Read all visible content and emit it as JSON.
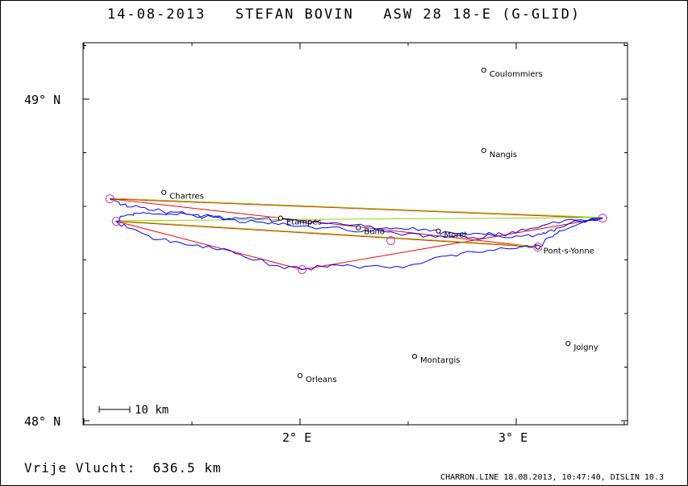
{
  "title": "14-08-2013   STEFAN BOVIN   ASW 28 18-E (G-GLID)",
  "axes": {
    "y_labels": [
      {
        "text": "49° N",
        "lat": 49.0
      },
      {
        "text": "48° N",
        "lat": 48.0
      }
    ],
    "x_labels": [
      {
        "text": "2° E",
        "lon": 2.0
      },
      {
        "text": "3° E",
        "lon": 3.0
      }
    ]
  },
  "places": [
    {
      "name": "Coulommiers",
      "lon": 2.85,
      "lat": 49.09
    },
    {
      "name": "Nangis",
      "lon": 2.85,
      "lat": 48.84
    },
    {
      "name": "Chartres",
      "lon": 1.37,
      "lat": 48.71
    },
    {
      "name": "Etampes",
      "lon": 1.91,
      "lat": 48.63
    },
    {
      "name": "Buno",
      "lon": 2.27,
      "lat": 48.6
    },
    {
      "name": "Moret",
      "lon": 2.64,
      "lat": 48.59
    },
    {
      "name": "Pont-s-Yonne",
      "lon": 3.1,
      "lat": 48.54
    },
    {
      "name": "Joigny",
      "lon": 3.24,
      "lat": 48.24
    },
    {
      "name": "Montargis",
      "lon": 2.53,
      "lat": 48.2
    },
    {
      "name": "Orleans",
      "lon": 2.0,
      "lat": 48.14
    }
  ],
  "scale_bar": {
    "label": "10 km"
  },
  "footer_left": "Vrije Vlucht:  636.5 km",
  "footer_right": "CHARRON.LINE 18.08.2013, 10:47:40, DISLIN 10.3",
  "colors": {
    "track": "#0000ff",
    "task_red": "#ff0000",
    "task_green": "#88e000",
    "turnpoint": "#cc33cc",
    "frame": "#000000"
  },
  "turnpoints": [
    {
      "lon": 1.12,
      "lat": 48.69
    },
    {
      "lon": 1.15,
      "lat": 48.62
    },
    {
      "lon": 2.01,
      "lat": 48.47
    },
    {
      "lon": 2.42,
      "lat": 48.56
    },
    {
      "lon": 3.1,
      "lat": 48.54
    },
    {
      "lon": 3.4,
      "lat": 48.63
    }
  ],
  "task_lines_red": [
    [
      [
        1.12,
        48.69
      ],
      [
        3.4,
        48.63
      ]
    ],
    [
      [
        1.12,
        48.69
      ],
      [
        3.1,
        48.54
      ]
    ],
    [
      [
        1.15,
        48.62
      ],
      [
        2.01,
        48.47
      ]
    ],
    [
      [
        2.01,
        48.47
      ],
      [
        3.4,
        48.63
      ]
    ],
    [
      [
        1.15,
        48.62
      ],
      [
        3.1,
        48.54
      ]
    ]
  ],
  "task_lines_green": [
    [
      [
        1.12,
        48.69
      ],
      [
        3.4,
        48.63
      ]
    ],
    [
      [
        1.15,
        48.62
      ],
      [
        3.4,
        48.63
      ]
    ],
    [
      [
        1.15,
        48.62
      ],
      [
        3.1,
        48.54
      ]
    ]
  ],
  "track": [
    [
      1.12,
      48.69
    ],
    [
      1.16,
      48.68
    ],
    [
      1.22,
      48.665
    ],
    [
      1.3,
      48.655
    ],
    [
      1.4,
      48.65
    ],
    [
      1.5,
      48.64
    ],
    [
      1.6,
      48.632
    ],
    [
      1.7,
      48.625
    ],
    [
      1.8,
      48.618
    ],
    [
      1.9,
      48.61
    ],
    [
      2.0,
      48.605
    ],
    [
      2.1,
      48.6
    ],
    [
      2.2,
      48.596
    ],
    [
      2.3,
      48.592
    ],
    [
      2.4,
      48.587
    ],
    [
      2.5,
      48.582
    ],
    [
      2.6,
      48.577
    ],
    [
      2.7,
      48.573
    ],
    [
      2.8,
      48.57
    ],
    [
      2.9,
      48.575
    ],
    [
      3.0,
      48.585
    ],
    [
      3.1,
      48.6
    ],
    [
      3.2,
      48.615
    ],
    [
      3.3,
      48.625
    ],
    [
      3.4,
      48.63
    ],
    [
      3.3,
      48.62
    ],
    [
      3.2,
      48.6
    ],
    [
      3.15,
      48.59
    ],
    [
      3.1,
      48.58
    ],
    [
      3.0,
      48.575
    ],
    [
      2.9,
      48.578
    ],
    [
      2.8,
      48.582
    ],
    [
      2.7,
      48.585
    ],
    [
      2.6,
      48.59
    ],
    [
      2.5,
      48.595
    ],
    [
      2.4,
      48.6
    ],
    [
      2.3,
      48.605
    ],
    [
      2.2,
      48.61
    ],
    [
      2.1,
      48.614
    ],
    [
      2.0,
      48.618
    ],
    [
      1.9,
      48.622
    ],
    [
      1.8,
      48.627
    ],
    [
      1.7,
      48.632
    ],
    [
      1.6,
      48.636
    ],
    [
      1.5,
      48.64
    ],
    [
      1.4,
      48.643
    ],
    [
      1.3,
      48.646
    ],
    [
      1.25,
      48.645
    ],
    [
      1.2,
      48.64
    ],
    [
      1.15,
      48.62
    ],
    [
      1.2,
      48.6
    ],
    [
      1.3,
      48.575
    ],
    [
      1.4,
      48.555
    ],
    [
      1.5,
      48.545
    ],
    [
      1.6,
      48.535
    ],
    [
      1.7,
      48.52
    ],
    [
      1.8,
      48.5
    ],
    [
      1.9,
      48.482
    ],
    [
      2.01,
      48.47
    ],
    [
      2.1,
      48.48
    ],
    [
      2.2,
      48.482
    ],
    [
      2.3,
      48.48
    ],
    [
      2.42,
      48.475
    ],
    [
      2.5,
      48.482
    ],
    [
      2.6,
      48.5
    ],
    [
      2.7,
      48.515
    ],
    [
      2.8,
      48.525
    ],
    [
      2.9,
      48.53
    ],
    [
      3.0,
      48.535
    ],
    [
      3.05,
      48.545
    ],
    [
      3.1,
      48.54
    ],
    [
      3.15,
      48.57
    ],
    [
      3.2,
      48.59
    ],
    [
      3.3,
      48.615
    ],
    [
      3.4,
      48.63
    ]
  ]
}
